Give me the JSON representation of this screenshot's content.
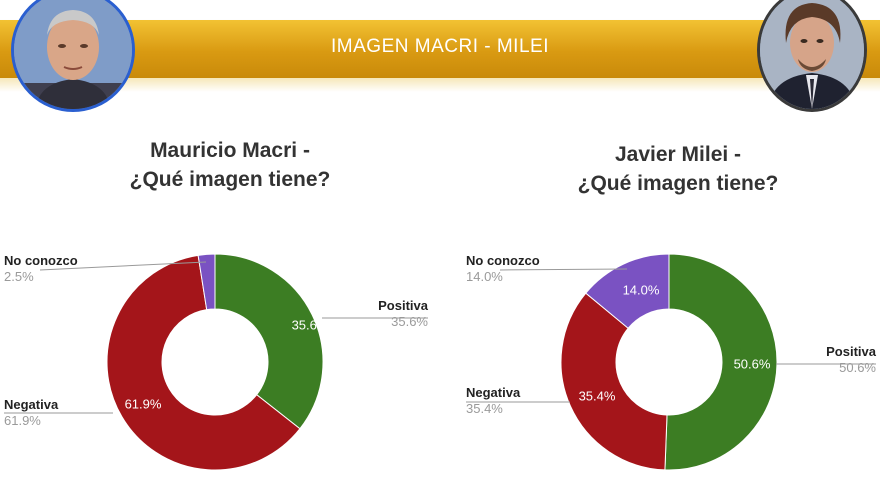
{
  "header": {
    "title": "IMAGEN MACRI - MILEI"
  },
  "people": {
    "left": {
      "photo": "portrait-mauricio-macri"
    },
    "right": {
      "photo": "portrait-javier-milei"
    }
  },
  "colors": {
    "Positiva": "#3c7d23",
    "Negativa": "#a4151a",
    "No conozco": "#7a52c2",
    "banner": "#e0a41a"
  },
  "chart_data": [
    {
      "type": "pie",
      "donut": true,
      "title_line1": "Mauricio Macri -",
      "title_line2": "¿Qué imagen tiene?",
      "slices": [
        {
          "label": "Positiva",
          "value": 35.6,
          "display": "35.6%"
        },
        {
          "label": "Negativa",
          "value": 61.9,
          "display": "61.9%"
        },
        {
          "label": "No conozco",
          "value": 2.5,
          "display": "2.5%"
        }
      ]
    },
    {
      "type": "pie",
      "donut": true,
      "title_line1": "Javier Milei -",
      "title_line2": "¿Qué imagen tiene?",
      "slices": [
        {
          "label": "Positiva",
          "value": 50.6,
          "display": "50.6%"
        },
        {
          "label": "Negativa",
          "value": 35.4,
          "display": "35.4%"
        },
        {
          "label": "No conozco",
          "value": 14.0,
          "display": "14.0%"
        }
      ]
    }
  ]
}
